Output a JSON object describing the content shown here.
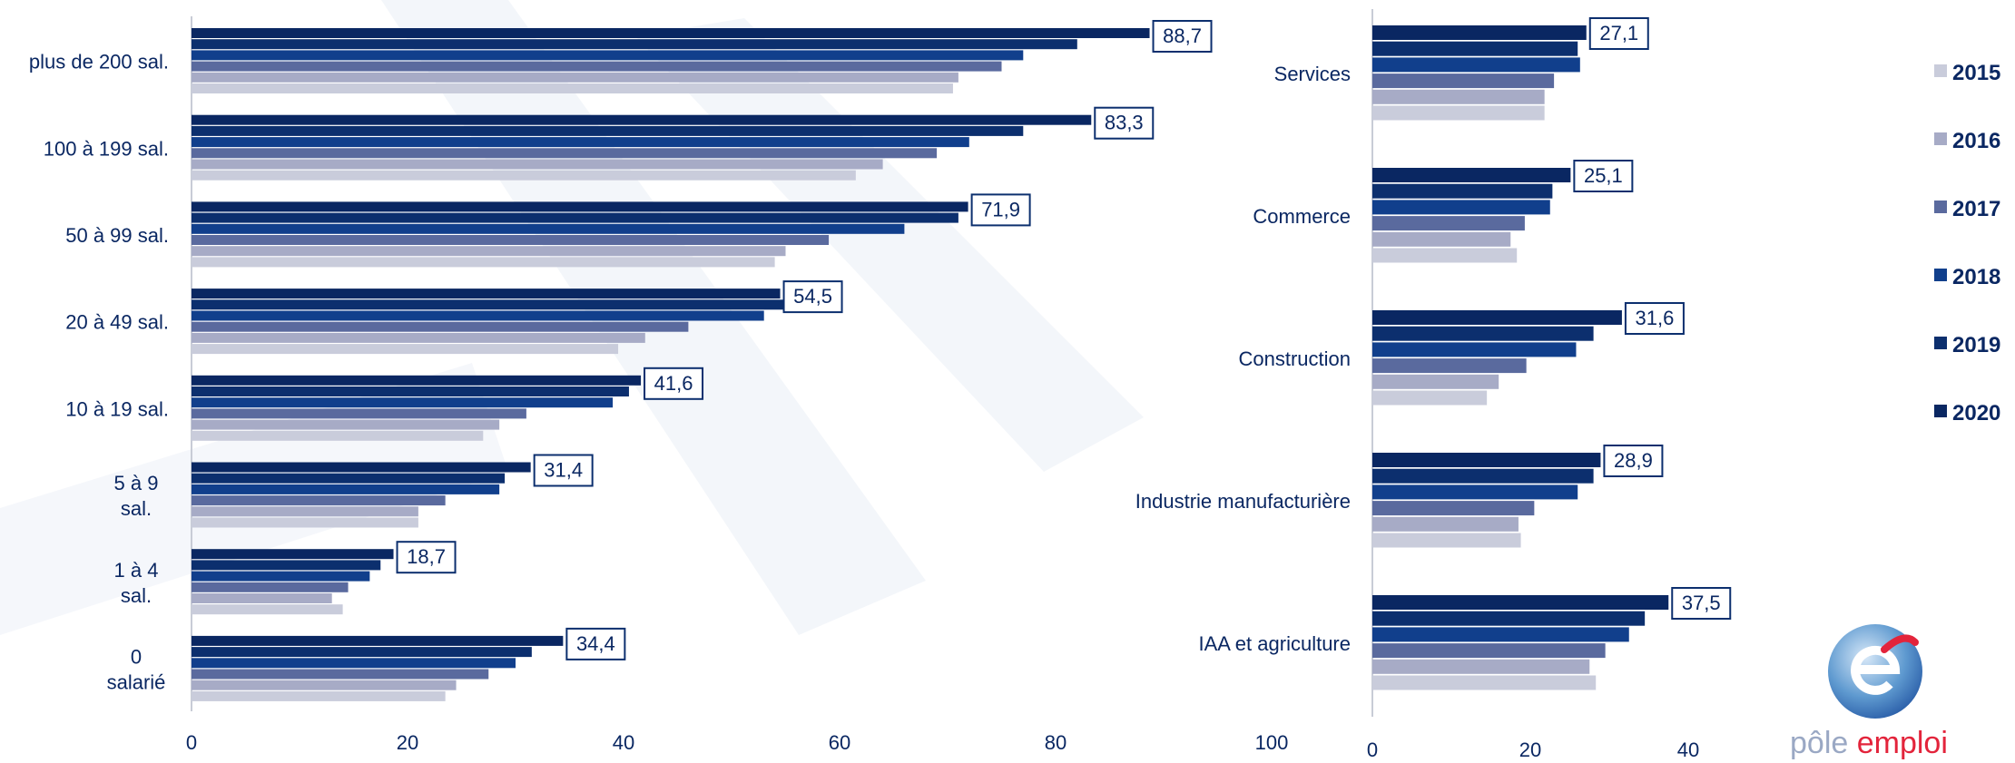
{
  "legend": {
    "items": [
      {
        "label": "2015",
        "color": "#c9ccdb"
      },
      {
        "label": "2016",
        "color": "#a7abc6"
      },
      {
        "label": "2017",
        "color": "#5a6a9e"
      },
      {
        "label": "2018",
        "color": "#113f8c"
      },
      {
        "label": "2019",
        "color": "#0c2f6e"
      },
      {
        "label": "2020",
        "color": "#0a2762"
      }
    ]
  },
  "chart_data": [
    {
      "type": "bar",
      "orientation": "horizontal",
      "categories": [
        "plus de 200 sal.",
        "100 à 199 sal.",
        "50 à 99 sal.",
        "20 à 49 sal.",
        "10 à 19 sal.",
        "5 à 9 sal.",
        "1 à 4 sal.",
        "0 salarié"
      ],
      "category_lines": [
        [
          "plus de 200 sal."
        ],
        [
          "100 à 199 sal."
        ],
        [
          "50 à 99 sal."
        ],
        [
          "20 à 49 sal."
        ],
        [
          "10 à 19 sal."
        ],
        [
          "5 à 9",
          "sal."
        ],
        [
          "1 à 4",
          "sal."
        ],
        [
          "0",
          "salarié"
        ]
      ],
      "series": [
        {
          "name": "2020",
          "values": [
            88.7,
            83.3,
            71.9,
            54.5,
            41.6,
            31.4,
            18.7,
            34.4
          ]
        },
        {
          "name": "2019",
          "values": [
            82.0,
            77.0,
            71.0,
            55.0,
            40.5,
            29.0,
            17.5,
            31.5
          ]
        },
        {
          "name": "2018",
          "values": [
            77.0,
            72.0,
            66.0,
            53.0,
            39.0,
            28.5,
            16.5,
            30.0
          ]
        },
        {
          "name": "2017",
          "values": [
            75.0,
            69.0,
            59.0,
            46.0,
            31.0,
            23.5,
            14.5,
            27.5
          ]
        },
        {
          "name": "2016",
          "values": [
            71.0,
            64.0,
            55.0,
            42.0,
            28.5,
            21.0,
            13.0,
            24.5
          ]
        },
        {
          "name": "2015",
          "values": [
            70.5,
            61.5,
            54.0,
            39.5,
            27.0,
            21.0,
            14.0,
            23.5
          ]
        }
      ],
      "value_labels": [
        "88,7",
        "83,3",
        "71,9",
        "54,5",
        "41,6",
        "31,4",
        "18,7",
        "34,4"
      ],
      "xlim": [
        0,
        100
      ],
      "xticks": [
        "0",
        "20",
        "40",
        "60",
        "80",
        "100"
      ]
    },
    {
      "type": "bar",
      "orientation": "horizontal",
      "categories": [
        "Services",
        "Commerce",
        "Construction",
        "Industrie manufacturière",
        "IAA et agriculture"
      ],
      "category_lines": [
        [
          "Services"
        ],
        [
          "Commerce"
        ],
        [
          "Construction"
        ],
        [
          "Industrie manufacturière"
        ],
        [
          "IAA et agriculture"
        ]
      ],
      "series": [
        {
          "name": "2020",
          "values": [
            27.1,
            25.1,
            31.6,
            28.9,
            37.5
          ]
        },
        {
          "name": "2019",
          "values": [
            26.0,
            22.8,
            28.0,
            28.0,
            34.5
          ]
        },
        {
          "name": "2018",
          "values": [
            26.3,
            22.5,
            25.8,
            26.0,
            32.5
          ]
        },
        {
          "name": "2017",
          "values": [
            23.0,
            19.3,
            19.5,
            20.5,
            29.5
          ]
        },
        {
          "name": "2016",
          "values": [
            21.8,
            17.5,
            16.0,
            18.5,
            27.5
          ]
        },
        {
          "name": "2015",
          "values": [
            21.8,
            18.3,
            14.5,
            18.8,
            28.3
          ]
        }
      ],
      "value_labels": [
        "27,1",
        "25,1",
        "31,6",
        "28,9",
        "37,5"
      ],
      "xlim": [
        0,
        40
      ],
      "xticks": [
        "0",
        "20",
        "40"
      ]
    }
  ],
  "logo": {
    "text_part1": "pôle ",
    "text_part2": "emploi"
  }
}
